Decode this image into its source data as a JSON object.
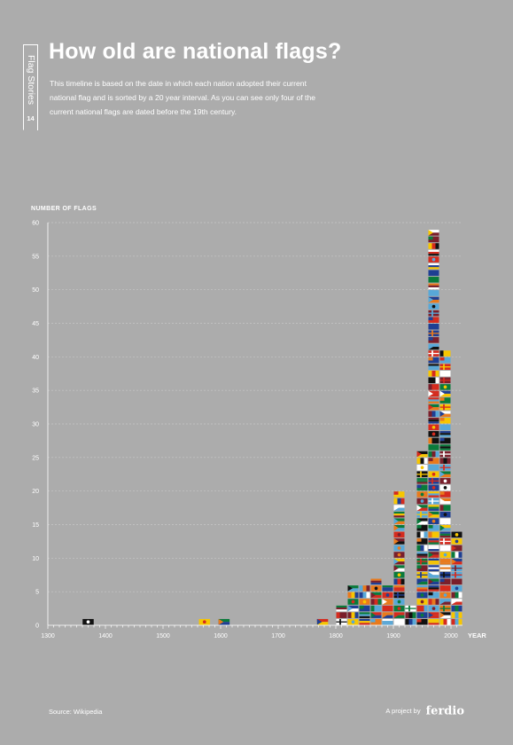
{
  "header": {
    "series": "Flag Stories",
    "issue": "14",
    "title": "How old are national flags?",
    "subtitle": "This timeline is based on the date in which each nation adopted their current national flag and is sorted by a 20 year interval. As you can see only four of the current national flags are dated before the 19th century."
  },
  "footer": {
    "source": "Source: Wikipedia",
    "project_by": "A project by",
    "brand": "ferdio"
  },
  "colors": {
    "background": "#acacac",
    "text": "#ffffff",
    "grid": "#c6c6c6",
    "flag_palette": [
      "#d52b1e",
      "#ffffff",
      "#1f3f93",
      "#0a7a3b",
      "#f7c600",
      "#111111",
      "#58a8d8",
      "#e97a1c",
      "#7a1f2b"
    ]
  },
  "chart_data": {
    "type": "bar",
    "ylabel": "NUMBER OF FLAGS",
    "xlabel": "YEAR",
    "xlim": [
      1300,
      2020
    ],
    "ylim": [
      0,
      60
    ],
    "x_ticks": [
      1300,
      1400,
      1500,
      1600,
      1700,
      1800,
      1900,
      2000
    ],
    "y_ticks": [
      0,
      5,
      10,
      15,
      20,
      25,
      30,
      35,
      40,
      45,
      50,
      55,
      60
    ],
    "grid": true,
    "bars": [
      {
        "year": 1370,
        "count": 1
      },
      {
        "year": 1572,
        "count": 1
      },
      {
        "year": 1606,
        "count": 1
      },
      {
        "year": 1777,
        "count": 1
      },
      {
        "year": 1810,
        "count": 3
      },
      {
        "year": 1830,
        "count": 6
      },
      {
        "year": 1850,
        "count": 6
      },
      {
        "year": 1870,
        "count": 7
      },
      {
        "year": 1890,
        "count": 6
      },
      {
        "year": 1910,
        "count": 20
      },
      {
        "year": 1930,
        "count": 3
      },
      {
        "year": 1950,
        "count": 26
      },
      {
        "year": 1970,
        "count": 59
      },
      {
        "year": 1990,
        "count": 41
      },
      {
        "year": 2010,
        "count": 14
      }
    ]
  }
}
